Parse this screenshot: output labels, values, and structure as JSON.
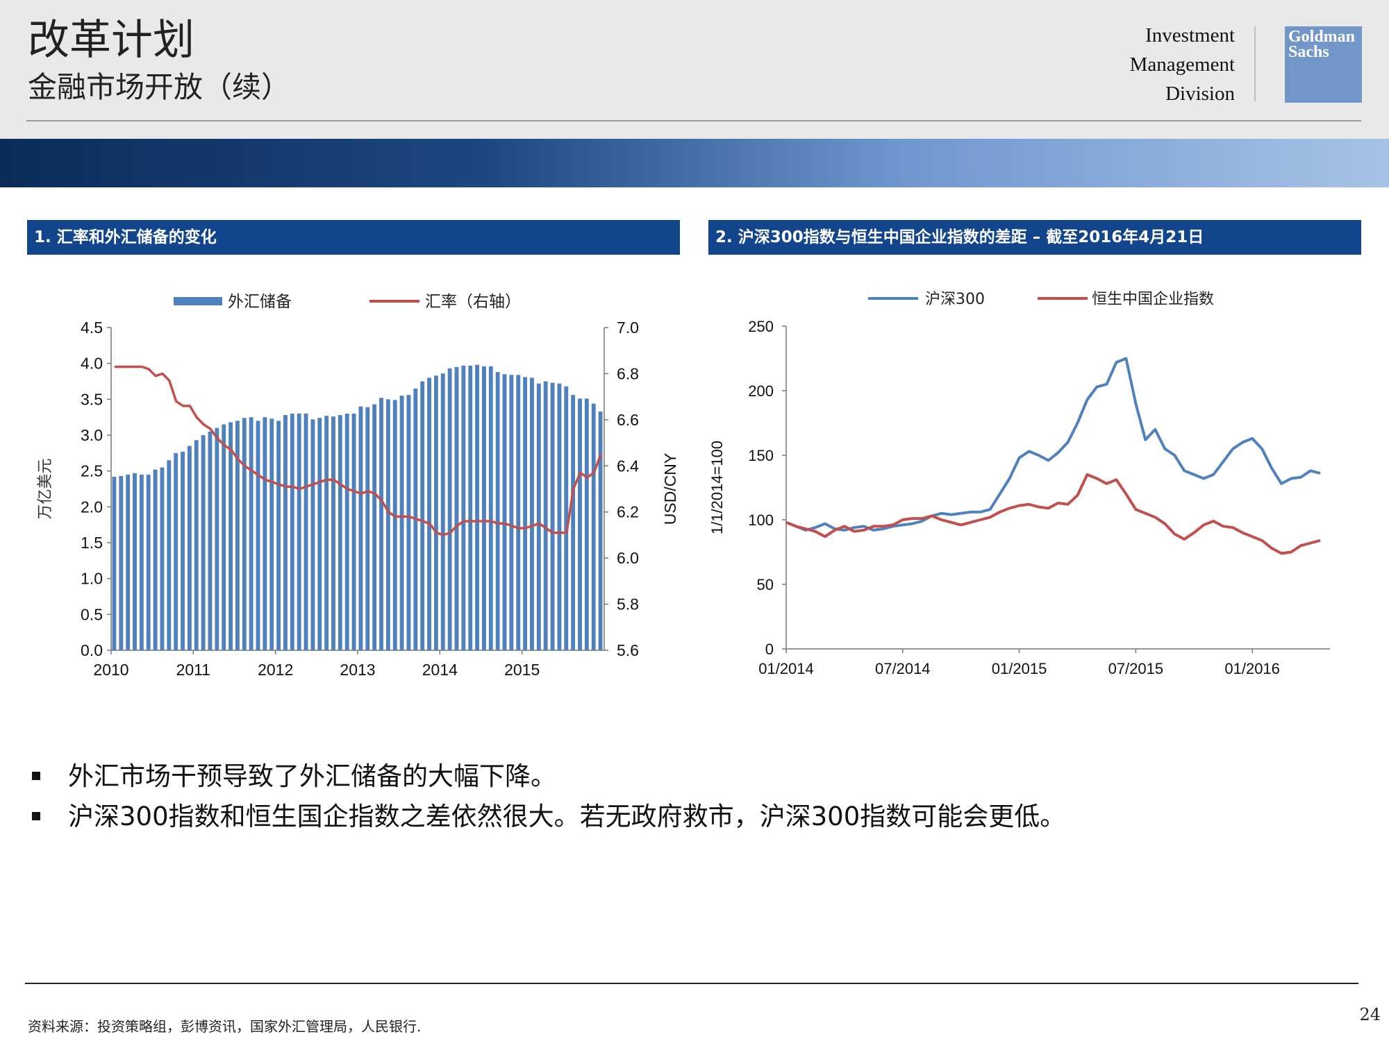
{
  "header": {
    "title": "改革计划",
    "subtitle": "金融市场开放（续）",
    "division_lines": [
      "Investment",
      "Management",
      "Division"
    ],
    "logo_lines": [
      "Goldman",
      "Sachs"
    ]
  },
  "panels": [
    {
      "title": "1. 汇率和外汇储备的变化"
    },
    {
      "title": "2. 沪深300指数与恒生中国企业指数的差距 – 截至2016年4月21日"
    }
  ],
  "chart_data": [
    {
      "type": "bar",
      "title": "",
      "ylabel": "万亿美元",
      "y2label": "USD/CNY",
      "ylim": [
        0,
        4.5
      ],
      "y2lim": [
        5.6,
        7.0
      ],
      "yticks": [
        "0.0",
        "0.5",
        "1.0",
        "1.5",
        "2.0",
        "2.5",
        "3.0",
        "3.5",
        "4.0",
        "4.5"
      ],
      "y2ticks": [
        "5.6",
        "5.8",
        "6.0",
        "6.2",
        "6.4",
        "6.6",
        "6.8",
        "7.0"
      ],
      "xticks": [
        "2010",
        "2011",
        "2012",
        "2013",
        "2014",
        "2015"
      ],
      "xlim": [
        2010,
        2016
      ],
      "legend_position": "top",
      "series": [
        {
          "name": "外汇储备",
          "kind": "bar",
          "axis": "left",
          "color": "#4f81bd",
          "values": [
            2.42,
            2.43,
            2.45,
            2.47,
            2.45,
            2.45,
            2.52,
            2.55,
            2.65,
            2.75,
            2.77,
            2.85,
            2.93,
            3.0,
            3.05,
            3.1,
            3.15,
            3.18,
            3.2,
            3.24,
            3.25,
            3.2,
            3.25,
            3.23,
            3.2,
            3.28,
            3.3,
            3.3,
            3.3,
            3.22,
            3.24,
            3.27,
            3.26,
            3.28,
            3.3,
            3.3,
            3.4,
            3.39,
            3.43,
            3.52,
            3.5,
            3.49,
            3.55,
            3.56,
            3.65,
            3.75,
            3.8,
            3.83,
            3.86,
            3.93,
            3.95,
            3.97,
            3.97,
            3.98,
            3.96,
            3.96,
            3.88,
            3.85,
            3.84,
            3.84,
            3.81,
            3.8,
            3.72,
            3.75,
            3.73,
            3.72,
            3.68,
            3.56,
            3.51,
            3.51,
            3.44,
            3.33
          ]
        },
        {
          "name": "汇率（右轴）",
          "kind": "line",
          "axis": "right",
          "color": "#c0504d",
          "values": [
            6.83,
            6.83,
            6.83,
            6.83,
            6.83,
            6.82,
            6.79,
            6.8,
            6.77,
            6.68,
            6.66,
            6.66,
            6.61,
            6.58,
            6.56,
            6.52,
            6.49,
            6.47,
            6.43,
            6.4,
            6.38,
            6.36,
            6.34,
            6.33,
            6.32,
            6.31,
            6.31,
            6.3,
            6.31,
            6.32,
            6.33,
            6.34,
            6.34,
            6.32,
            6.3,
            6.29,
            6.28,
            6.29,
            6.28,
            6.25,
            6.2,
            6.18,
            6.18,
            6.18,
            6.17,
            6.16,
            6.15,
            6.11,
            6.1,
            6.11,
            6.14,
            6.16,
            6.16,
            6.16,
            6.16,
            6.16,
            6.15,
            6.15,
            6.14,
            6.13,
            6.13,
            6.14,
            6.15,
            6.13,
            6.11,
            6.11,
            6.11,
            6.3,
            6.37,
            6.35,
            6.37,
            6.45
          ]
        }
      ]
    },
    {
      "type": "line",
      "title": "",
      "ylabel": "1/1/2014=100",
      "ylim": [
        0,
        250
      ],
      "yticks": [
        "0",
        "50",
        "100",
        "150",
        "200",
        "250"
      ],
      "xticks": [
        "01/2014",
        "07/2014",
        "01/2015",
        "07/2015",
        "01/2016"
      ],
      "x_months_since_jan_2014": [
        0,
        0.5,
        1,
        1.5,
        2,
        2.5,
        3,
        3.5,
        4,
        4.5,
        5,
        5.5,
        6,
        6.5,
        7,
        7.5,
        8,
        8.5,
        9,
        9.5,
        10,
        10.5,
        11,
        11.5,
        12,
        12.5,
        13,
        13.5,
        14,
        14.5,
        15,
        15.5,
        16,
        16.5,
        17,
        17.5,
        18,
        18.5,
        19,
        19.5,
        20,
        20.5,
        21,
        21.5,
        22,
        22.5,
        23,
        23.5,
        24,
        24.5,
        25,
        25.5,
        26,
        26.5,
        27,
        27.5
      ],
      "legend_position": "top",
      "series": [
        {
          "name": "沪深300",
          "color": "#4f81bd",
          "values": [
            98,
            95,
            92,
            94,
            97,
            93,
            92,
            94,
            95,
            92,
            93,
            95,
            96,
            97,
            99,
            103,
            105,
            104,
            105,
            106,
            106,
            108,
            120,
            132,
            148,
            153,
            150,
            146,
            152,
            160,
            175,
            193,
            203,
            205,
            222,
            225,
            190,
            162,
            170,
            155,
            150,
            138,
            135,
            132,
            135,
            145,
            155,
            160,
            163,
            155,
            140,
            128,
            132,
            133,
            138,
            136
          ]
        },
        {
          "name": "恒生中国企业指数",
          "color": "#c0504d",
          "values": [
            98,
            95,
            93,
            91,
            87,
            92,
            95,
            91,
            92,
            95,
            95,
            96,
            100,
            101,
            101,
            103,
            100,
            98,
            96,
            98,
            100,
            102,
            106,
            109,
            111,
            112,
            110,
            109,
            113,
            112,
            119,
            135,
            132,
            128,
            131,
            120,
            108,
            105,
            102,
            97,
            89,
            85,
            90,
            96,
            99,
            95,
            94,
            90,
            87,
            84,
            78,
            74,
            75,
            80,
            82,
            84
          ]
        }
      ]
    }
  ],
  "bullets": [
    "外汇市场干预导致了外汇储备的大幅下降。",
    "沪深300指数和恒生国企指数之差依然很大。若无政府救市，沪深300指数可能会更低。"
  ],
  "footer": {
    "source": "资料来源：投资策略组，彭博资讯，国家外汇管理局，人民银行.",
    "page_number": "24"
  }
}
